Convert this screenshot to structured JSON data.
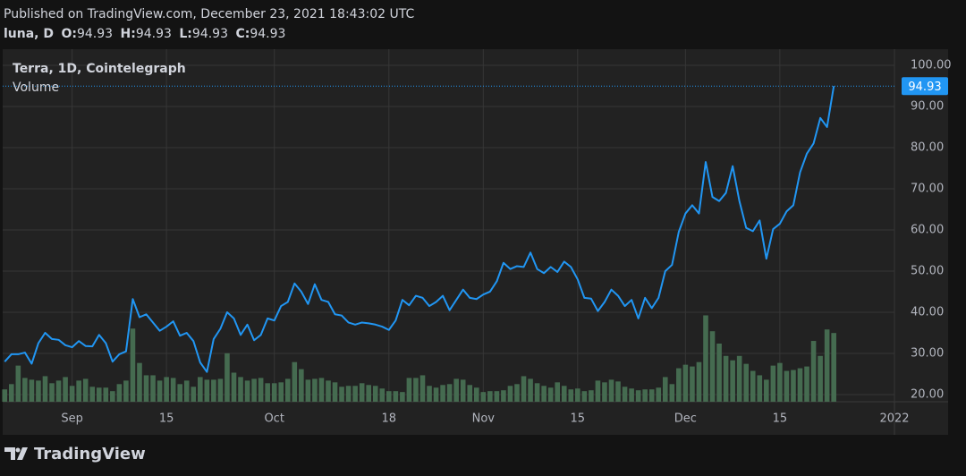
{
  "header": {
    "published": "Published on TradingView.com, December 23, 2021 18:43:02 UTC",
    "symbol": "luna, D",
    "ohlc": [
      {
        "label": "O:",
        "value": 94.93
      },
      {
        "label": "H:",
        "value": 94.93
      },
      {
        "label": "L:",
        "value": 94.93
      },
      {
        "label": "C:",
        "value": 94.93
      }
    ],
    "brand": "TradingView"
  },
  "chart_data": {
    "type": "line",
    "xlim": [
      -0.3,
      132
    ],
    "xticks": [
      {
        "value": 10,
        "label": "Sep"
      },
      {
        "value": 24,
        "label": "15"
      },
      {
        "value": 40,
        "label": "Oct"
      },
      {
        "value": 57,
        "label": "18"
      },
      {
        "value": 71,
        "label": "Nov"
      },
      {
        "value": 85,
        "label": "15"
      },
      {
        "value": 101,
        "label": "Dec"
      },
      {
        "value": 115,
        "label": "15"
      },
      {
        "value": 132,
        "label": "2022"
      }
    ],
    "ylim": [
      18.26,
      103.9
    ],
    "yticks": [
      {
        "value": 20,
        "label": "20.00"
      },
      {
        "value": 30,
        "label": "30.00"
      },
      {
        "value": 40,
        "label": "40.00"
      },
      {
        "value": 50,
        "label": "50.00"
      },
      {
        "value": 60,
        "label": "60.00"
      },
      {
        "value": 70,
        "label": "70.00"
      },
      {
        "value": 80,
        "label": "80.00"
      },
      {
        "value": 90,
        "label": "90.00"
      },
      {
        "value": 100,
        "label": "100.00"
      }
    ],
    "y2lim": [
      0,
      400
    ],
    "grid": true,
    "series": [
      {
        "name": "Terra, 1D, Cointelegraph",
        "color": "#2196f3",
        "values": [
          28,
          29.8,
          29.8,
          30.2,
          27.5,
          32.5,
          35,
          33.5,
          33.3,
          32,
          31.5,
          33,
          31.8,
          31.7,
          34.5,
          32.5,
          28,
          29.8,
          30.5,
          43.2,
          38.8,
          39.5,
          37.5,
          35.5,
          36.5,
          37.8,
          34.3,
          35,
          33,
          27.8,
          25.5,
          33.5,
          36,
          40,
          38.5,
          34.5,
          37,
          33.2,
          34.5,
          38.5,
          38,
          41.5,
          42.5,
          47,
          45,
          42,
          46.8,
          43,
          42.5,
          39.5,
          39.2,
          37.5,
          37,
          37.5,
          37.3,
          37,
          36.5,
          35.7,
          38,
          43,
          41.7,
          44,
          43.5,
          41.5,
          42.5,
          44,
          40.5,
          43,
          45.5,
          43.5,
          43.2,
          44.3,
          45,
          47.5,
          52,
          50.5,
          51.2,
          51,
          54.5,
          50.5,
          49.5,
          51,
          49.8,
          52.3,
          51,
          48,
          43.5,
          43.3,
          40.3,
          42.5,
          45.5,
          44,
          41.5,
          43,
          38.5,
          43.5,
          41,
          43.5,
          50,
          51.5,
          59.5,
          64,
          66,
          64,
          76.5,
          68,
          67,
          69,
          75.5,
          67,
          60.5,
          59.7,
          62.3,
          53,
          60.2,
          61.5,
          64.5,
          66,
          74,
          78.5,
          81,
          87.2,
          85,
          94.93
        ]
      },
      {
        "name": "Volume",
        "type": "bar",
        "axis": "y2",
        "color": "#456b50",
        "values": [
          14,
          20,
          41,
          27,
          25,
          24,
          29,
          21,
          24,
          28,
          18,
          24,
          26,
          17,
          16,
          16,
          12,
          20,
          24,
          83,
          44,
          30,
          30,
          24,
          28,
          27,
          20,
          24,
          17,
          28,
          25,
          25,
          26,
          55,
          33,
          28,
          24,
          26,
          27,
          21,
          21,
          22,
          26,
          45,
          37,
          25,
          26,
          27,
          24,
          22,
          17,
          18,
          18,
          21,
          19,
          18,
          15,
          12,
          12,
          11,
          27,
          27,
          30,
          18,
          16,
          19,
          20,
          26,
          25,
          19,
          16,
          11,
          12,
          12,
          13,
          18,
          20,
          29,
          26,
          21,
          18,
          16,
          22,
          18,
          14,
          15,
          12,
          13,
          24,
          22,
          25,
          23,
          17,
          15,
          13,
          14,
          14,
          16,
          28,
          20,
          38,
          42,
          40,
          45,
          98,
          80,
          66,
          52,
          47,
          52,
          43,
          35,
          30,
          25,
          41,
          44,
          35,
          36,
          38,
          40,
          69,
          52,
          82,
          78
        ]
      }
    ]
  }
}
